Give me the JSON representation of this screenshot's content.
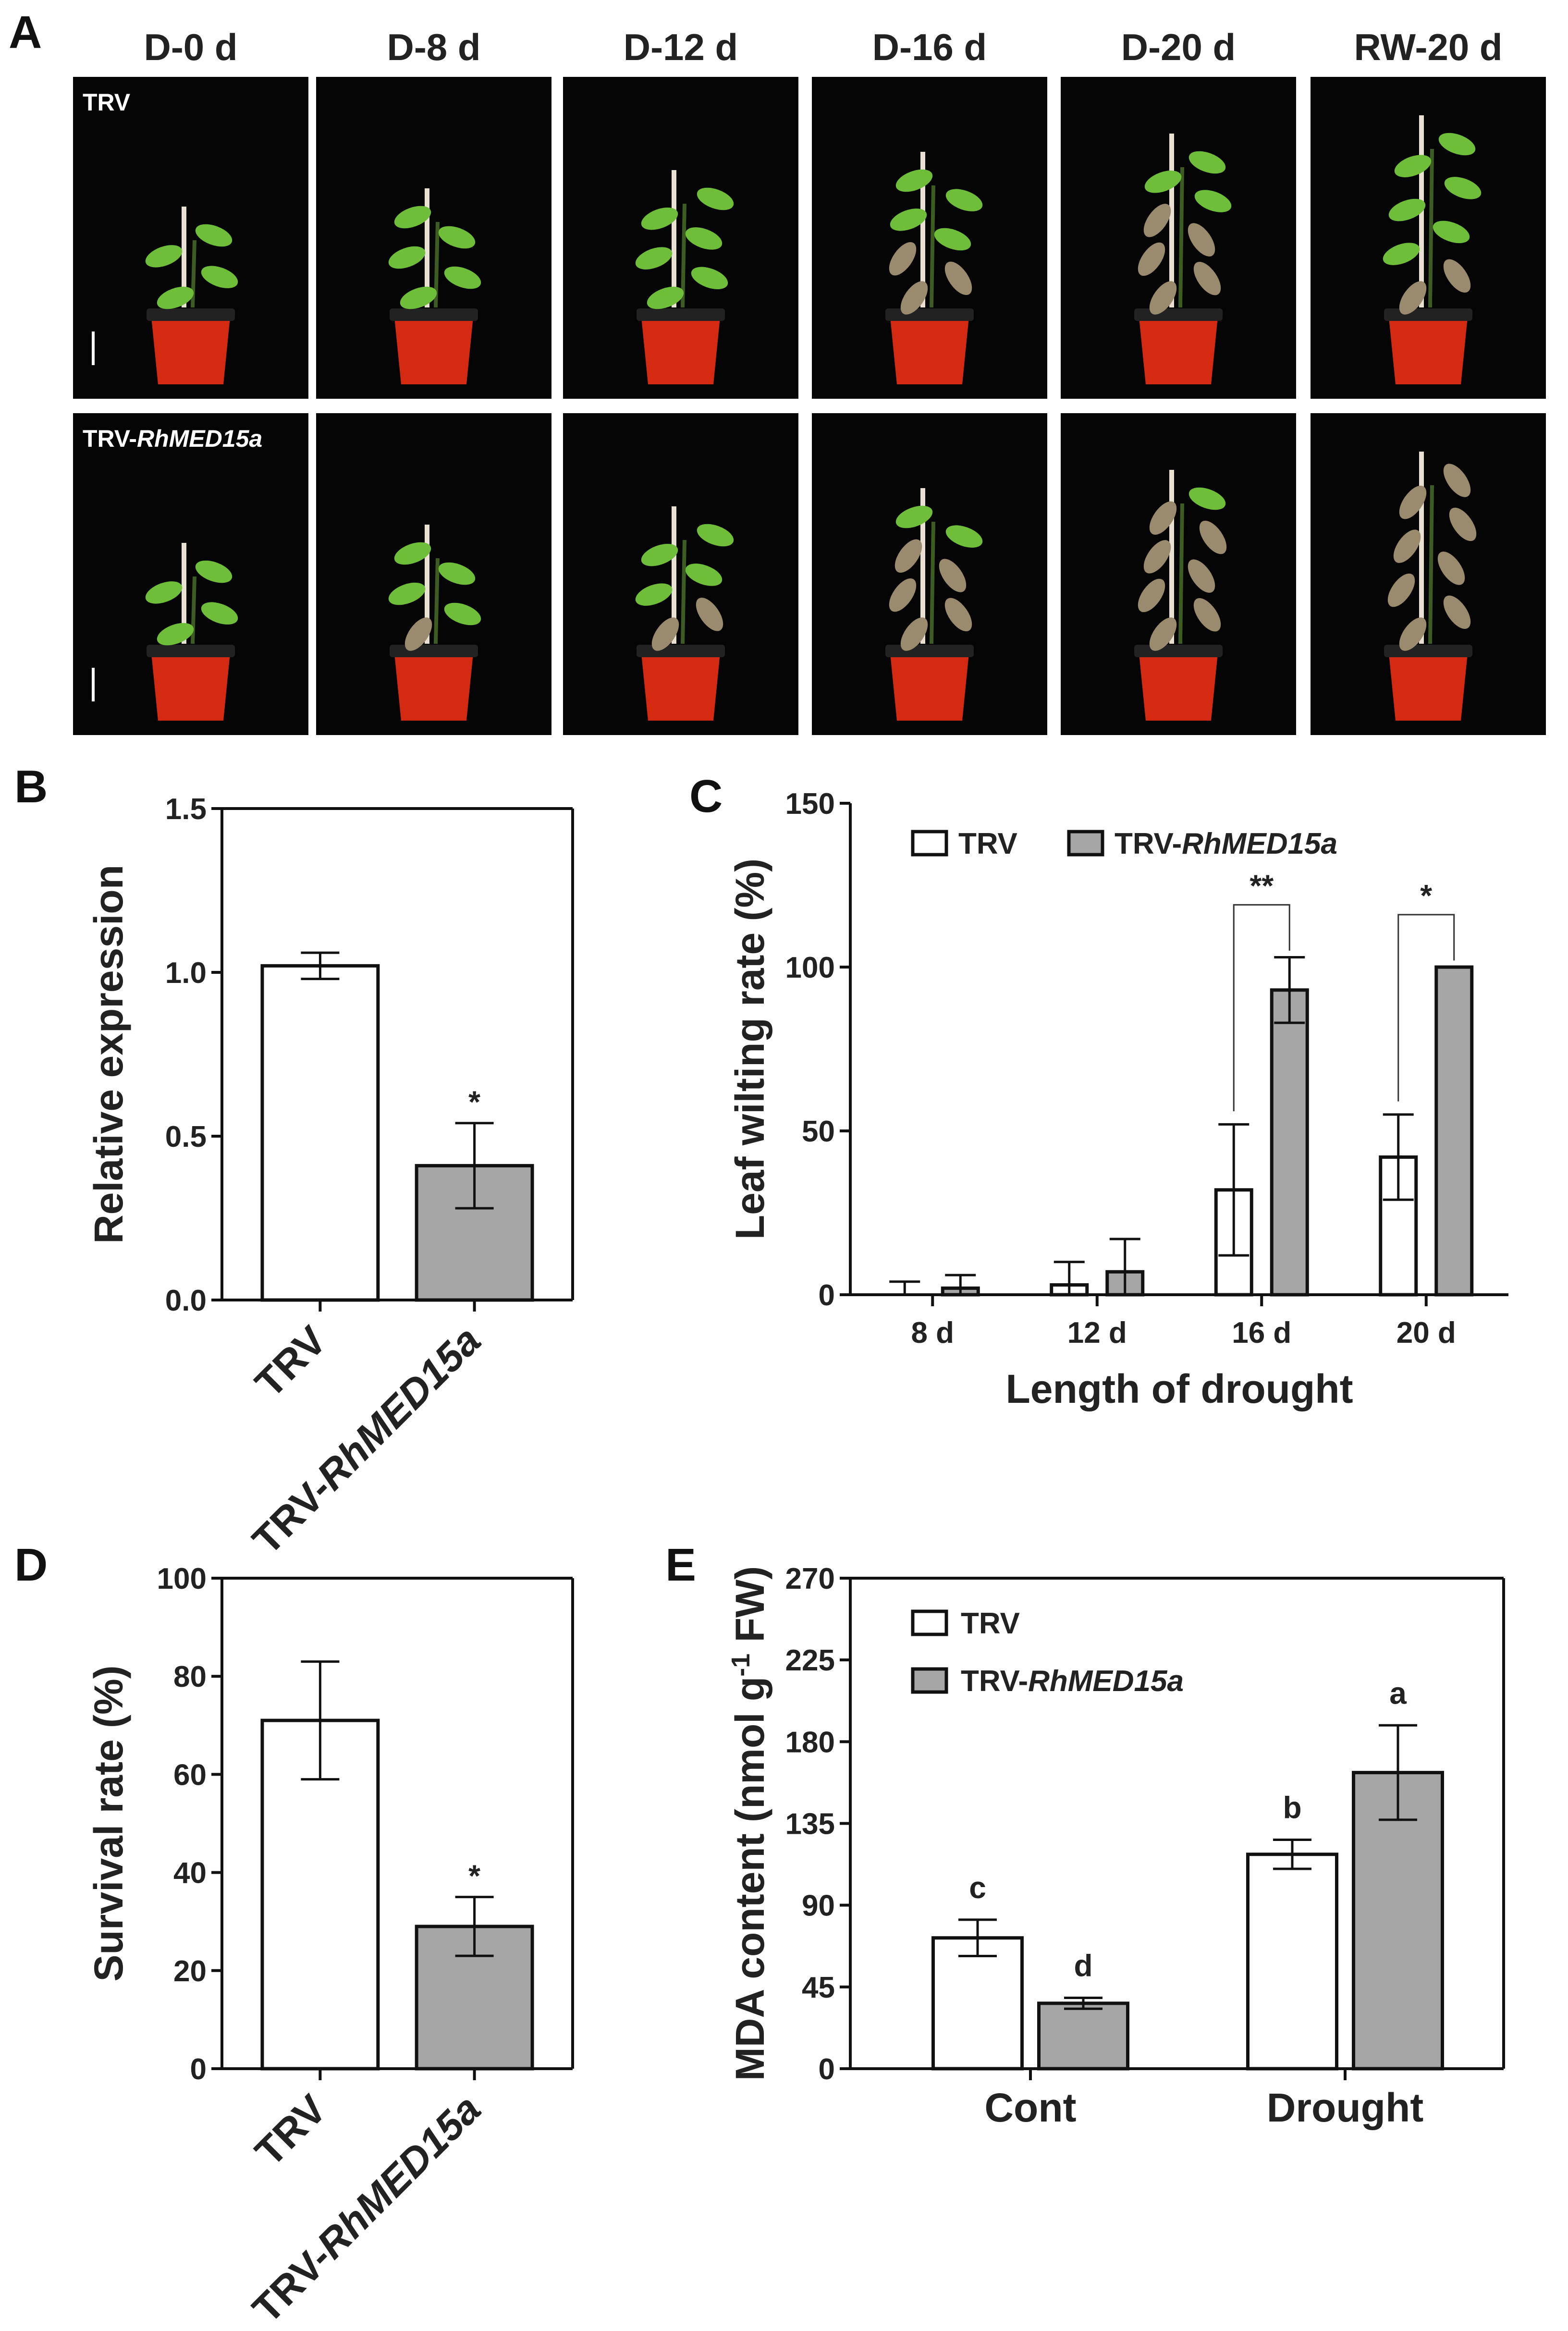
{
  "colors": {
    "control_fill": "#ffffff",
    "treatment_fill": "#a6a6a6",
    "stroke": "#111111",
    "photo_bg": "#050505",
    "pot": "#d42a12",
    "leaf": "#6fbe3a",
    "wilted_leaf": "#9a8a6e"
  },
  "panel_labels": {
    "a": "A",
    "b": "B",
    "c": "C",
    "d": "D",
    "e": "E"
  },
  "panel_a": {
    "columns": [
      "D-0 d",
      "D-8 d",
      "D-12 d",
      "D-16 d",
      "D-20 d",
      "RW-20 d"
    ],
    "rows": [
      {
        "label_prefix": "TRV",
        "label_italic": ""
      },
      {
        "label_prefix": "TRV-",
        "label_italic": "RhMED15a"
      }
    ]
  },
  "chart_data": [
    {
      "id": "B",
      "type": "bar",
      "categories": [
        {
          "prefix": "TRV",
          "italic": ""
        },
        {
          "prefix": "TRV-",
          "italic": "RhMED15a"
        }
      ],
      "values": [
        1.02,
        0.41
      ],
      "errors": [
        0.04,
        0.13
      ],
      "significance": [
        "",
        "*"
      ],
      "ylabel": "Relative expression",
      "ylim": [
        0,
        1.5
      ],
      "yticks": [
        "0.0",
        "0.5",
        "1.0",
        "1.5"
      ]
    },
    {
      "id": "C",
      "type": "bar",
      "categories": [
        "8 d",
        "12 d",
        "16 d",
        "20 d"
      ],
      "series": [
        {
          "name_prefix": "TRV",
          "name_italic": "",
          "values": [
            0,
            3,
            32,
            42
          ],
          "errors": [
            4,
            7,
            20,
            13
          ]
        },
        {
          "name_prefix": "TRV-",
          "name_italic": "RhMED15a",
          "values": [
            2,
            7,
            93,
            100
          ],
          "errors": [
            4,
            10,
            10,
            0
          ]
        }
      ],
      "brackets": [
        {
          "category": "16 d",
          "label": "**"
        },
        {
          "category": "20 d",
          "label": "*"
        }
      ],
      "xlabel": "Length of drought",
      "ylabel": "Leaf wilting rate (%)",
      "ylim": [
        0,
        150
      ],
      "yticks": [
        "0",
        "50",
        "100",
        "150"
      ],
      "legend": "top"
    },
    {
      "id": "D",
      "type": "bar",
      "categories": [
        {
          "prefix": "TRV",
          "italic": ""
        },
        {
          "prefix": "TRV-",
          "italic": "RhMED15a"
        }
      ],
      "values": [
        71,
        29
      ],
      "errors": [
        12,
        6
      ],
      "significance": [
        "",
        "*"
      ],
      "ylabel": "Survival rate (%)",
      "ylim": [
        0,
        100
      ],
      "yticks": [
        "0",
        "20",
        "40",
        "60",
        "80",
        "100"
      ]
    },
    {
      "id": "E",
      "type": "bar",
      "categories": [
        "Cont",
        "Drought"
      ],
      "series": [
        {
          "name_prefix": "TRV",
          "name_italic": "",
          "values": [
            72,
            118
          ],
          "errors": [
            10,
            8
          ],
          "letters": [
            "c",
            "b"
          ]
        },
        {
          "name_prefix": "TRV-",
          "name_italic": "RhMED15a",
          "values": [
            36,
            163
          ],
          "errors": [
            3,
            26
          ],
          "letters": [
            "d",
            "a"
          ]
        }
      ],
      "ylabel_main": "MDA content (nmol g",
      "ylabel_sup": "-1",
      "ylabel_tail": " FW)",
      "ylim": [
        0,
        270
      ],
      "yticks": [
        "0",
        "45",
        "90",
        "135",
        "180",
        "225",
        "270"
      ],
      "legend": "top-left"
    }
  ]
}
